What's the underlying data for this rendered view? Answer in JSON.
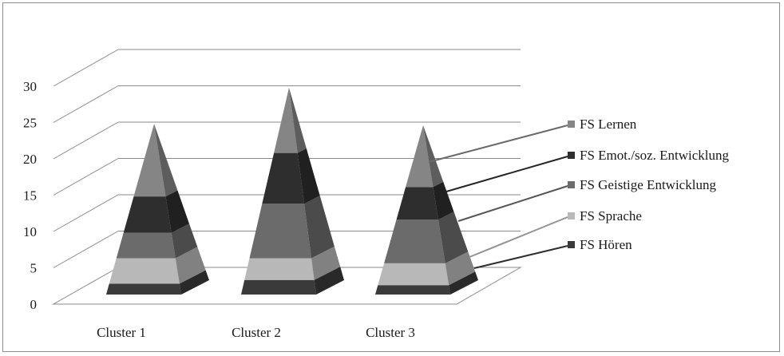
{
  "chart_data": {
    "type": "bar",
    "subtype": "3d-stacked-pyramid",
    "categories": [
      "Cluster 1",
      "Cluster 2",
      "Cluster 3"
    ],
    "yticks": [
      "0",
      "5",
      "10",
      "15",
      "20",
      "25",
      "30"
    ],
    "ylim": [
      0,
      30
    ],
    "grid": true,
    "legend_position": "right",
    "series": [
      {
        "name": "FS Hören",
        "values": [
          1.5,
          2,
          1.3
        ],
        "color": "#3a3a3a"
      },
      {
        "name": "FS Sprache",
        "values": [
          3.5,
          3,
          3
        ],
        "color": "#b8b8b8"
      },
      {
        "name": "FS Geistige Entwicklung",
        "values": [
          3.5,
          7.5,
          6
        ],
        "color": "#6b6b6b"
      },
      {
        "name": "FS Emot./soz. Entwicklung",
        "values": [
          5,
          7,
          4.5
        ],
        "color": "#2e2e2e"
      },
      {
        "name": "FS Lernen",
        "values": [
          10,
          9,
          8.5
        ],
        "color": "#858585"
      }
    ]
  }
}
